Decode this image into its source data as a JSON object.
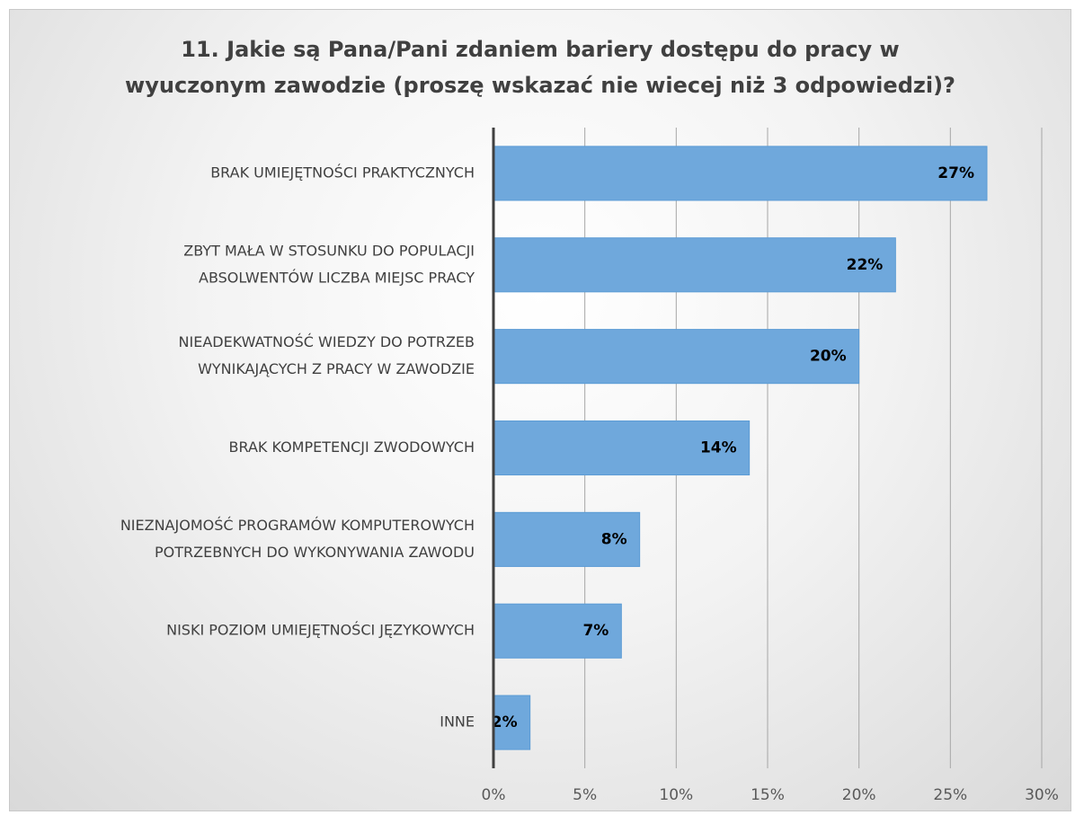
{
  "chart_data": {
    "type": "bar",
    "orientation": "horizontal",
    "title_lines": [
      "11. Jakie są Pana/Pani zdaniem bariery dostępu do pracy w",
      "wyuczonym zawodzie (proszę wskazać nie wiecej niż 3 odpowiedzi)?"
    ],
    "categories": [
      [
        "BRAK UMIEJĘTNOŚCI PRAKTYCZNYCH"
      ],
      [
        "ZBYT MAŁA W STOSUNKU DO POPULACJI",
        "ABSOLWENTÓW LICZBA MIEJSC PRACY"
      ],
      [
        "NIEADEKWATNOŚĆ WIEDZY DO POTRZEB",
        "WYNIKAJĄCYCH Z PRACY W ZAWODZIE"
      ],
      [
        "BRAK KOMPETENCJI ZWODOWYCH"
      ],
      [
        "NIEZNAJOMOŚĆ PROGRAMÓW KOMPUTEROWYCH",
        "POTRZEBNYCH DO WYKONYWANIA ZAWODU"
      ],
      [
        "NISKI POZIOM UMIEJĘTNOŚCI JĘZYKOWYCH"
      ],
      [
        "INNE"
      ]
    ],
    "values": [
      27,
      22,
      20,
      14,
      8,
      7,
      2
    ],
    "data_labels": [
      "27%",
      "22%",
      "20%",
      "14%",
      "8%",
      "7%",
      "2%"
    ],
    "xlim": [
      0,
      30
    ],
    "xticks": [
      0,
      5,
      10,
      15,
      20,
      25,
      30
    ],
    "xtick_labels": [
      "0%",
      "5%",
      "10%",
      "15%",
      "20%",
      "25%",
      "30%"
    ],
    "xlabel": "",
    "ylabel": "",
    "grid": true,
    "legend": false,
    "colors": {
      "bar": "#6fa8dc",
      "bar_edge": "#5b9bd5",
      "grid": "#a6a6a6",
      "axis": "#404040"
    }
  }
}
